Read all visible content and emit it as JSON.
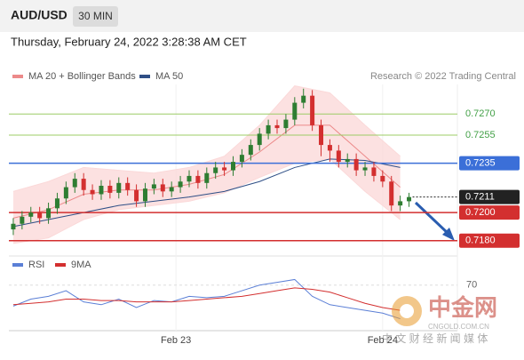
{
  "header": {
    "symbol": "AUD/USD",
    "interval": "30 MIN",
    "timestamp": "Thursday, February 24, 2022 3:28:38 AM CET"
  },
  "chart_data": {
    "type": "candlestick",
    "credit": "Research © 2022 Trading Central",
    "up_color": "#2e7d32",
    "down_color": "#d32f2f",
    "xlim": [
      -0.5,
      50.5
    ],
    "xticks": [
      {
        "value": 18.5,
        "label": "Feb 23"
      },
      {
        "value": 42,
        "label": "Feb 24"
      }
    ],
    "ylim": [
      0.7171,
      0.7291
    ],
    "open": [
      0.7188,
      0.7192,
      0.7197,
      0.72,
      0.7196,
      0.7203,
      0.721,
      0.7218,
      0.7224,
      0.7216,
      0.7213,
      0.7219,
      0.7214,
      0.7221,
      0.7216,
      0.7208,
      0.7217,
      0.722,
      0.7215,
      0.7218,
      0.7222,
      0.7226,
      0.7221,
      0.7228,
      0.7232,
      0.723,
      0.7236,
      0.7241,
      0.7248,
      0.7256,
      0.7262,
      0.726,
      0.7266,
      0.7278,
      0.7283,
      0.7262,
      0.7248,
      0.7244,
      0.7236,
      0.7238,
      0.723,
      0.7232,
      0.7226,
      0.7222,
      0.7205,
      0.7208
    ],
    "high": [
      0.7196,
      0.7201,
      0.7204,
      0.7204,
      0.7207,
      0.7214,
      0.7222,
      0.7228,
      0.7228,
      0.722,
      0.7223,
      0.7223,
      0.7225,
      0.7225,
      0.722,
      0.7221,
      0.7224,
      0.7224,
      0.7222,
      0.7226,
      0.723,
      0.723,
      0.7232,
      0.7236,
      0.7236,
      0.724,
      0.7245,
      0.7252,
      0.726,
      0.7266,
      0.7266,
      0.727,
      0.7282,
      0.7288,
      0.7287,
      0.7266,
      0.7252,
      0.7248,
      0.7242,
      0.7242,
      0.7236,
      0.7236,
      0.723,
      0.7226,
      0.7212,
      0.7214
    ],
    "low": [
      0.7184,
      0.7188,
      0.7193,
      0.7192,
      0.7192,
      0.7199,
      0.7206,
      0.7214,
      0.7212,
      0.7209,
      0.7209,
      0.721,
      0.721,
      0.7212,
      0.7204,
      0.7204,
      0.7213,
      0.7211,
      0.7211,
      0.7214,
      0.7218,
      0.7217,
      0.7217,
      0.7224,
      0.7226,
      0.7226,
      0.7232,
      0.7237,
      0.7244,
      0.7252,
      0.7256,
      0.7256,
      0.7262,
      0.7274,
      0.7258,
      0.724,
      0.7236,
      0.7232,
      0.7232,
      0.7226,
      0.7226,
      0.7222,
      0.7218,
      0.7201,
      0.7201,
      0.7204
    ],
    "close": [
      0.7192,
      0.7197,
      0.72,
      0.7196,
      0.7203,
      0.721,
      0.7218,
      0.7224,
      0.7216,
      0.7213,
      0.7219,
      0.7214,
      0.7221,
      0.7216,
      0.7208,
      0.7217,
      0.722,
      0.7215,
      0.7218,
      0.7222,
      0.7226,
      0.7221,
      0.7228,
      0.7232,
      0.723,
      0.7236,
      0.7241,
      0.7248,
      0.7256,
      0.7262,
      0.726,
      0.7266,
      0.7278,
      0.7283,
      0.7262,
      0.7248,
      0.7244,
      0.7236,
      0.7238,
      0.723,
      0.7232,
      0.7226,
      0.7222,
      0.7205,
      0.7208,
      0.7211
    ],
    "overlays": [
      {
        "name": "MA 20 + Bollinger Bands",
        "color": "#ec8a8a",
        "band_color": "#fbd9d9",
        "x": [
          0,
          4,
          8,
          12,
          16,
          20,
          24,
          28,
          32,
          36,
          40,
          44
        ],
        "values": [
          0.7196,
          0.7202,
          0.7213,
          0.7216,
          0.7216,
          0.722,
          0.7227,
          0.7243,
          0.7262,
          0.7262,
          0.724,
          0.7218
        ],
        "upper": [
          0.7215,
          0.7222,
          0.7232,
          0.723,
          0.7228,
          0.7232,
          0.724,
          0.7262,
          0.729,
          0.7285,
          0.7262,
          0.724
        ],
        "lower": [
          0.7178,
          0.7182,
          0.7195,
          0.7202,
          0.7205,
          0.7208,
          0.7214,
          0.7225,
          0.7235,
          0.7238,
          0.7215,
          0.7195
        ]
      },
      {
        "name": "MA 50",
        "color": "#2f4f86",
        "x": [
          0,
          4,
          8,
          12,
          16,
          20,
          24,
          28,
          32,
          36,
          40,
          44
        ],
        "values": [
          0.719,
          0.7195,
          0.72,
          0.7205,
          0.7208,
          0.7211,
          0.7215,
          0.7222,
          0.7232,
          0.7238,
          0.7237,
          0.7232
        ]
      }
    ],
    "levels": [
      {
        "value": 0.727,
        "label": "0.7270",
        "color": "#9ccc65",
        "text_color": "#43a047",
        "boxed": false
      },
      {
        "value": 0.7255,
        "label": "0.7255",
        "color": "#9ccc65",
        "text_color": "#43a047",
        "boxed": false
      },
      {
        "value": 0.7235,
        "label": "0.7235",
        "color": "#3b6fd8",
        "text_color": "#ffffff",
        "boxed": true
      },
      {
        "value": 0.72,
        "label": "0.7200",
        "color": "#d32f2f",
        "text_color": "#ffffff",
        "boxed": true
      },
      {
        "value": 0.718,
        "label": "0.7180",
        "color": "#d32f2f",
        "text_color": "#ffffff",
        "boxed": true
      }
    ],
    "current": {
      "value": 0.7211,
      "label": "0.7211",
      "color": "#222222"
    },
    "rsi": {
      "ylim": [
        40,
        80
      ],
      "yticks": [
        70
      ],
      "series": [
        {
          "name": "RSI",
          "color": "#5b7fd6",
          "x": [
            0,
            2,
            4,
            6,
            8,
            10,
            12,
            14,
            16,
            18,
            20,
            22,
            24,
            26,
            28,
            30,
            32,
            34,
            36,
            38,
            40,
            42,
            44
          ],
          "values": [
            55,
            60,
            62,
            66,
            58,
            56,
            60,
            54,
            59,
            58,
            62,
            61,
            62,
            66,
            70,
            72,
            74,
            62,
            56,
            54,
            52,
            50,
            46
          ]
        },
        {
          "name": "9MA",
          "color": "#d32f2f",
          "x": [
            0,
            2,
            4,
            6,
            8,
            10,
            12,
            14,
            16,
            18,
            20,
            22,
            24,
            26,
            28,
            30,
            32,
            34,
            36,
            38,
            40,
            42,
            44
          ],
          "values": [
            56,
            57,
            58,
            60,
            60,
            59,
            59,
            58,
            58,
            58,
            59,
            60,
            61,
            62,
            64,
            66,
            68,
            67,
            65,
            61,
            57,
            54,
            52
          ]
        }
      ]
    }
  },
  "watermark": {
    "logo": "中金网",
    "site": "CNGOLD.COM.CN",
    "tagline": "中 文 财 经 新 闻 媒 体"
  }
}
